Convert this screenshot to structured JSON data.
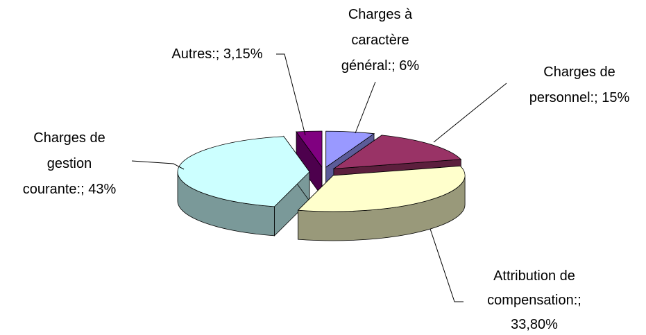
{
  "chart_data": {
    "type": "pie",
    "categories": [
      "Charges à caractère général:;",
      "Charges de personnel:;",
      "Attribution de compensation:;",
      "Charges de gestion courante:;",
      "Autres:;"
    ],
    "values": [
      6,
      15,
      33.8,
      43,
      3.15
    ],
    "value_labels": [
      "6%",
      "15%",
      "33,80%",
      "43%",
      "3,15%"
    ],
    "colors": [
      "#9999ff",
      "#993366",
      "#ffffcc",
      "#ccffff",
      "#800080"
    ]
  }
}
